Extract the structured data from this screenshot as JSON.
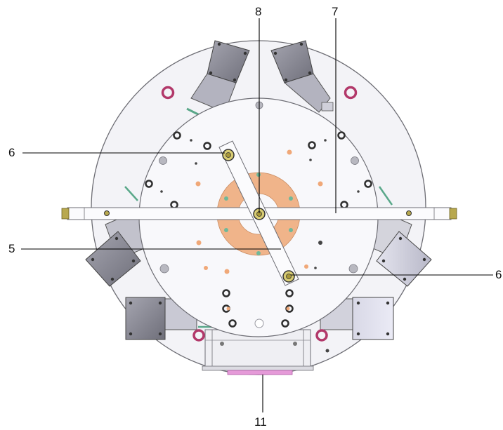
{
  "labels": {
    "eight": "8",
    "seven": "7",
    "six_left": "6",
    "six_right": "6",
    "five": "5",
    "eleven": "11"
  },
  "colors": {
    "outer_plate": "#f3f3f7",
    "inner_plate": "#f8f8fb",
    "edge": "#6d6d74",
    "orange_ring": "#f0b48a",
    "magenta": "#b2386a",
    "pink_plate": "#e59ad8",
    "bolt": "#b8a84e",
    "hole_dark": "#2e2e2e",
    "hole_orange": "#f0a878",
    "module_dark": "#8c8c96",
    "module_light": "#c8c8d4",
    "teal": "#5aa88a",
    "leader": "#000000"
  }
}
